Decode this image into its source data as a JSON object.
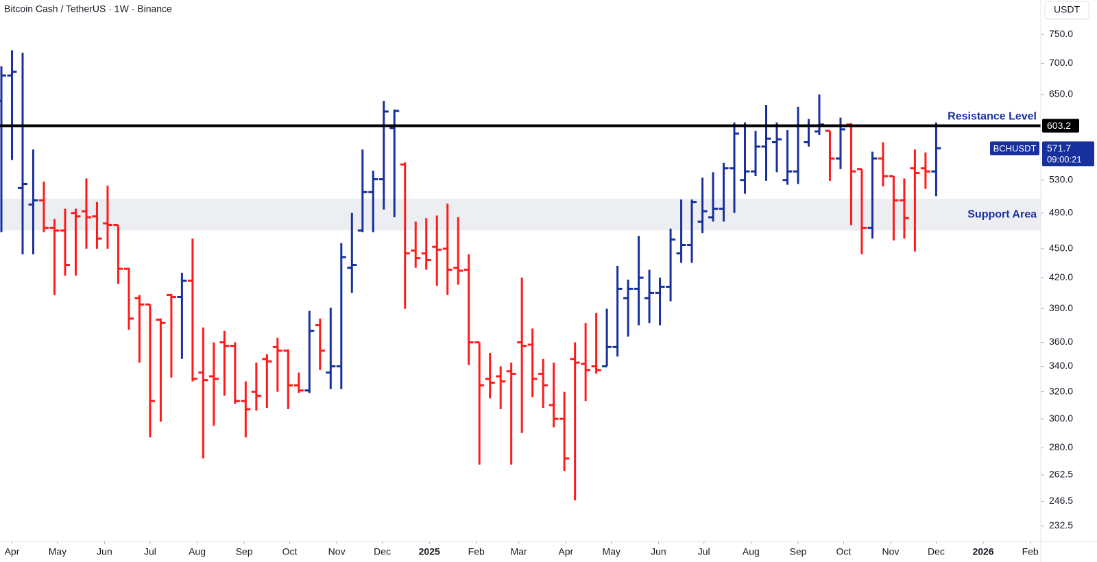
{
  "chart_data": {
    "type": "ohlc",
    "title": "Bitcoin Cash / TetherUS · 1W · Binance",
    "currency": "USDT",
    "symbol": "BCHUSDT",
    "countdown": "09:00:21",
    "up_color": "#17309e",
    "down_color": "#ff1a1a",
    "log_scale": true,
    "x": [
      0,
      1,
      2,
      3,
      4,
      5,
      6,
      7,
      8,
      9,
      10,
      11,
      12,
      13,
      14,
      15,
      16,
      17,
      18,
      19,
      20,
      21,
      22,
      23,
      24,
      25,
      26,
      27,
      28,
      29,
      30,
      31,
      32,
      33,
      34,
      35,
      36,
      37,
      38,
      39,
      40,
      41,
      42,
      43,
      44,
      45,
      46,
      47,
      48,
      49,
      50,
      51,
      52,
      53,
      54,
      55,
      56,
      57,
      58,
      59,
      60,
      61,
      62,
      63,
      64,
      65,
      66,
      67,
      68,
      69,
      70,
      71,
      72,
      73,
      74,
      75,
      76,
      77,
      78,
      79,
      80,
      81,
      82,
      83,
      84,
      85,
      86,
      87,
      88
    ],
    "open": [
      640,
      680,
      520,
      500,
      505,
      473,
      470,
      490,
      492,
      486,
      478,
      476,
      429,
      400,
      394,
      380,
      403,
      401,
      417,
      335,
      332,
      360,
      357,
      313,
      320,
      346,
      356,
      353,
      325,
      321,
      375,
      335,
      340,
      430,
      470,
      515,
      531,
      600,
      550,
      448,
      445,
      452,
      450,
      430,
      428,
      360,
      330,
      332,
      336,
      360,
      358,
      334,
      310,
      300,
      346,
      342,
      340,
      340,
      356,
      400,
      409,
      400,
      405,
      411,
      445,
      454,
      480,
      485,
      495,
      545,
      530,
      541,
      574,
      580,
      530,
      541,
      580,
      595,
      596,
      558,
      605,
      544,
      473,
      558,
      535,
      505,
      545,
      545,
      541
    ],
    "high": [
      695,
      722,
      718,
      570,
      528,
      483,
      495,
      495,
      532,
      503,
      523,
      476,
      430,
      403,
      394,
      381,
      404,
      425,
      461,
      373,
      360,
      370,
      360,
      328,
      343,
      350,
      364,
      354,
      335,
      388,
      381,
      391,
      456,
      490,
      570,
      542,
      640,
      627,
      553,
      480,
      484,
      487,
      501,
      485,
      444,
      360,
      351,
      340,
      343,
      420,
      372,
      346,
      343,
      320,
      360,
      377,
      386,
      390,
      432,
      418,
      464,
      428,
      420,
      472,
      506,
      506,
      533,
      540,
      552,
      608,
      608,
      596,
      634,
      608,
      597,
      631,
      613,
      650,
      596,
      615,
      607,
      544,
      567,
      580,
      535,
      532,
      570,
      566,
      608
    ],
    "low": [
      468,
      556,
      444,
      444,
      468,
      403,
      422,
      422,
      450,
      450,
      450,
      414,
      371,
      343,
      287,
      298,
      331,
      346,
      328,
      273,
      295,
      317,
      311,
      287,
      306,
      308,
      320,
      307,
      319,
      319,
      337,
      322,
      322,
      405,
      468,
      468,
      494,
      485,
      390,
      430,
      428,
      412,
      403,
      413,
      341,
      269,
      315,
      307,
      269,
      290,
      316,
      308,
      294,
      265,
      247,
      313,
      334,
      340,
      348,
      365,
      375,
      377,
      375,
      397,
      435,
      435,
      467,
      480,
      480,
      490,
      513,
      535,
      529,
      540,
      524,
      525,
      574,
      590,
      529,
      544,
      476,
      444,
      461,
      522,
      459,
      461,
      447,
      519,
      510
    ],
    "close": [
      680,
      686,
      525,
      505,
      473,
      470,
      433,
      486,
      485,
      461,
      476,
      429,
      381,
      394,
      313,
      377,
      401,
      417,
      330,
      329,
      330,
      357,
      313,
      307,
      317,
      344,
      353,
      325,
      321,
      370,
      353,
      340,
      441,
      433,
      515,
      531,
      624,
      625,
      445,
      440,
      438,
      449,
      428,
      427,
      360,
      325,
      327,
      328,
      334,
      357,
      330,
      325,
      300,
      273,
      343,
      337,
      337,
      356,
      409,
      409,
      420,
      405,
      411,
      460,
      454,
      503,
      492,
      495,
      545,
      592,
      541,
      574,
      585,
      584,
      541,
      603,
      603,
      605,
      558,
      598,
      541,
      473,
      558,
      535,
      505,
      484,
      539,
      541,
      571.7
    ],
    "xlim": [
      -0.13,
      97.85
    ],
    "xticks": [
      {
        "value": 1,
        "label": "Apr"
      },
      {
        "value": 5.29,
        "label": "May"
      },
      {
        "value": 9.71,
        "label": "Jun"
      },
      {
        "value": 14,
        "label": "Jul"
      },
      {
        "value": 18.43,
        "label": "Aug"
      },
      {
        "value": 22.86,
        "label": "Sep"
      },
      {
        "value": 27.14,
        "label": "Oct"
      },
      {
        "value": 31.57,
        "label": "Nov"
      },
      {
        "value": 35.86,
        "label": "Dec"
      },
      {
        "value": 40.29,
        "label": "2025"
      },
      {
        "value": 44.71,
        "label": "Feb"
      },
      {
        "value": 48.71,
        "label": "Mar"
      },
      {
        "value": 53.14,
        "label": "Apr"
      },
      {
        "value": 57.43,
        "label": "May"
      },
      {
        "value": 61.86,
        "label": "Jun"
      },
      {
        "value": 66.14,
        "label": "Jul"
      },
      {
        "value": 70.57,
        "label": "Aug"
      },
      {
        "value": 75,
        "label": "Sep"
      },
      {
        "value": 79.29,
        "label": "Oct"
      },
      {
        "value": 83.71,
        "label": "Nov"
      },
      {
        "value": 88,
        "label": "Dec"
      },
      {
        "value": 92.43,
        "label": "2026"
      },
      {
        "value": 96.86,
        "label": "Feb"
      }
    ],
    "ylim": [
      224,
      814
    ],
    "yticks": [
      {
        "value": 750,
        "label": "750.0"
      },
      {
        "value": 700,
        "label": "700.0"
      },
      {
        "value": 650,
        "label": "650.0"
      },
      {
        "value": 530,
        "label": "530.0"
      },
      {
        "value": 490,
        "label": "490.0"
      },
      {
        "value": 450,
        "label": "450.0"
      },
      {
        "value": 420,
        "label": "420.0"
      },
      {
        "value": 390,
        "label": "390.0"
      },
      {
        "value": 360,
        "label": "360.0"
      },
      {
        "value": 340,
        "label": "340.0"
      },
      {
        "value": 320,
        "label": "320.0"
      },
      {
        "value": 300,
        "label": "300.0"
      },
      {
        "value": 280,
        "label": "280.0"
      },
      262.5,
      246.5,
      232.5
    ],
    "resistance": {
      "label": "Resistance Level",
      "value": 603.2,
      "color": "#000000"
    },
    "support": {
      "label": "Support Area",
      "range": [
        470,
        507
      ],
      "color": "#eceef2"
    }
  }
}
